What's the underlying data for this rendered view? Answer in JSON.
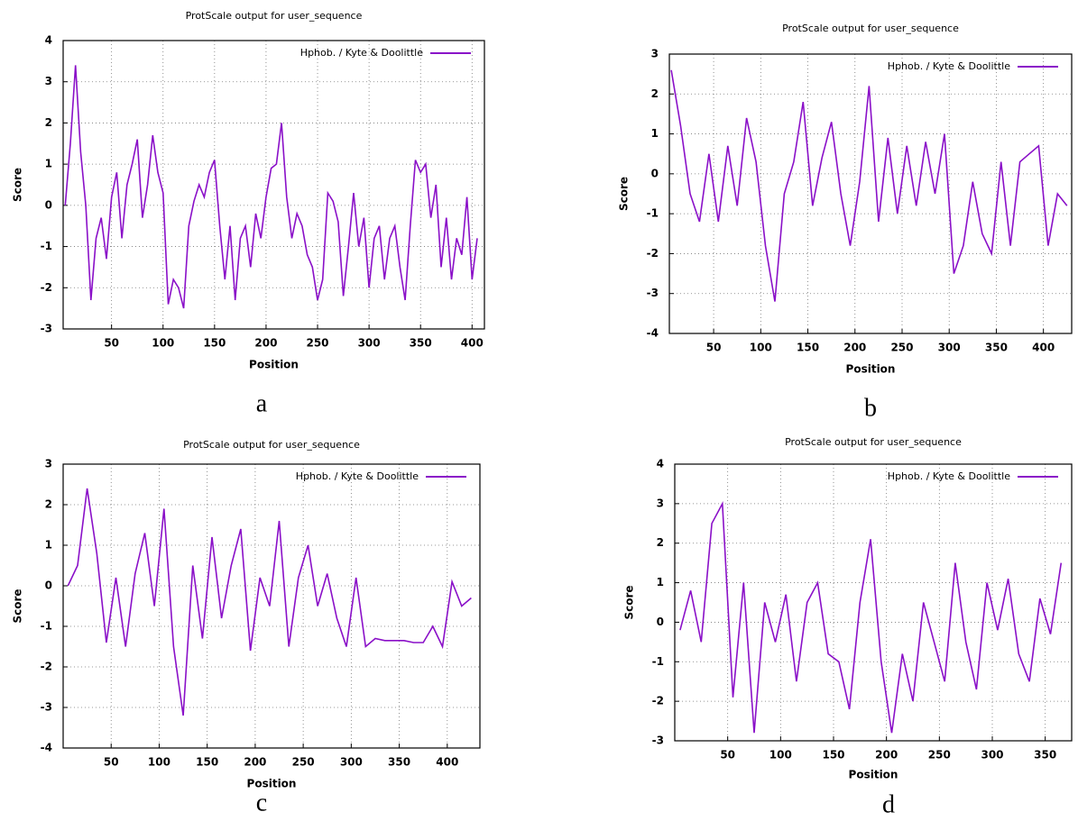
{
  "chart_data": [
    {
      "type": "line",
      "title": "ProtScale output for user_sequence",
      "panel_label": "a",
      "xlabel": "Position",
      "ylabel": "Score",
      "x": [
        5,
        10,
        15,
        20,
        25,
        30,
        35,
        40,
        45,
        50,
        55,
        60,
        65,
        70,
        75,
        80,
        85,
        90,
        95,
        100,
        105,
        110,
        115,
        120,
        125,
        130,
        135,
        140,
        145,
        150,
        155,
        160,
        165,
        170,
        175,
        180,
        185,
        190,
        195,
        200,
        205,
        210,
        215,
        220,
        225,
        230,
        235,
        240,
        245,
        250,
        255,
        260,
        265,
        270,
        275,
        280,
        285,
        290,
        295,
        300,
        305,
        310,
        315,
        320,
        325,
        330,
        335,
        340,
        345,
        350,
        355,
        360,
        365,
        370,
        375,
        380,
        385,
        390,
        395,
        400,
        405
      ],
      "series": [
        {
          "name": "Hphob. / Kyte & Doolittle",
          "color": "#8a10c8",
          "values": [
            0,
            1.5,
            3.4,
            1.3,
            0,
            -2.3,
            -0.8,
            -0.3,
            -1.3,
            0.2,
            0.8,
            -0.8,
            0.5,
            1.0,
            1.6,
            -0.3,
            0.5,
            1.7,
            0.8,
            0.3,
            -2.4,
            -1.8,
            -2.0,
            -2.5,
            -0.5,
            0.1,
            0.5,
            0.2,
            0.8,
            1.1,
            -0.5,
            -1.8,
            -0.5,
            -2.3,
            -0.8,
            -0.5,
            -1.5,
            -0.2,
            -0.8,
            0.2,
            0.9,
            1.0,
            2.0,
            0.2,
            -0.8,
            -0.2,
            -0.5,
            -1.2,
            -1.5,
            -2.3,
            -1.8,
            0.3,
            0.1,
            -0.4,
            -2.2,
            -1.0,
            0.3,
            -1.0,
            -0.3,
            -2.0,
            -0.8,
            -0.5,
            -1.8,
            -0.8,
            -0.5,
            -1.5,
            -2.3,
            -0.5,
            1.1,
            0.8,
            1.0,
            -0.3,
            0.5,
            -1.5,
            -0.3,
            -1.8,
            -0.8,
            -1.2,
            0.2,
            -1.8,
            -0.8
          ]
        }
      ],
      "xlim": [
        3,
        412
      ],
      "ylim": [
        -3,
        4
      ],
      "xticks": [
        50,
        100,
        150,
        200,
        250,
        300,
        350,
        400
      ],
      "yticks": [
        -3,
        -2,
        -1,
        0,
        1,
        2,
        3,
        4
      ],
      "grid": true,
      "legend": "top right"
    },
    {
      "type": "line",
      "title": "ProtScale output for user_sequence",
      "panel_label": "b",
      "xlabel": "Position",
      "ylabel": "Score",
      "x": [
        5,
        15,
        25,
        35,
        45,
        55,
        65,
        75,
        85,
        95,
        105,
        115,
        125,
        135,
        145,
        155,
        165,
        175,
        185,
        195,
        205,
        215,
        225,
        235,
        245,
        255,
        265,
        275,
        285,
        295,
        305,
        315,
        325,
        335,
        345,
        355,
        365,
        375,
        385,
        395,
        405,
        415,
        425
      ],
      "series": [
        {
          "name": "Hphob. / Kyte & Doolittle",
          "color": "#8a10c8",
          "values": [
            2.6,
            1.2,
            -0.5,
            -1.2,
            0.5,
            -1.2,
            0.7,
            -0.8,
            1.4,
            0.3,
            -1.8,
            -3.2,
            -0.5,
            0.3,
            1.8,
            -0.8,
            0.4,
            1.3,
            -0.5,
            -1.8,
            -0.2,
            2.2,
            -1.2,
            0.9,
            -1.0,
            0.7,
            -0.8,
            0.8,
            -0.5,
            1.0,
            -2.5,
            -1.8,
            -0.2,
            -1.5,
            -2.0,
            0.3,
            -1.8,
            0.3,
            0.5,
            0.7,
            -1.8,
            -0.5,
            -0.8
          ]
        }
      ],
      "xlim": [
        3,
        430
      ],
      "ylim": [
        -4,
        3
      ],
      "xticks": [
        50,
        100,
        150,
        200,
        250,
        300,
        350,
        400
      ],
      "yticks": [
        -4,
        -3,
        -2,
        -1,
        0,
        1,
        2,
        3
      ],
      "grid": true,
      "legend": "top right"
    },
    {
      "type": "line",
      "title": "ProtScale output for user_sequence",
      "panel_label": "c",
      "xlabel": "Position",
      "ylabel": "Score",
      "x": [
        5,
        15,
        25,
        35,
        45,
        55,
        65,
        75,
        85,
        95,
        105,
        115,
        125,
        135,
        145,
        155,
        165,
        175,
        185,
        195,
        205,
        215,
        225,
        235,
        245,
        255,
        265,
        275,
        285,
        295,
        305,
        315,
        325,
        335,
        345,
        355,
        365,
        375,
        385,
        395,
        405,
        415,
        425
      ],
      "series": [
        {
          "name": "Hphob. / Kyte & Doolittle",
          "color": "#8a10c8",
          "values": [
            0,
            0.5,
            2.4,
            0.8,
            -1.4,
            0.2,
            -1.5,
            0.3,
            1.3,
            -0.5,
            1.9,
            -1.5,
            -3.2,
            0.5,
            -1.3,
            1.2,
            -0.8,
            0.5,
            1.4,
            -1.6,
            0.2,
            -0.5,
            1.6,
            -1.5,
            0.2,
            1.0,
            -0.5,
            0.3,
            -0.8,
            -1.5,
            0.2,
            -1.5,
            -1.3,
            -1.35,
            -1.35,
            -1.35,
            -1.4,
            -1.4,
            -1.0,
            -1.5,
            0.1,
            -0.5,
            -0.3
          ]
        }
      ],
      "xlim": [
        0,
        434
      ],
      "ylim": [
        -4,
        3
      ],
      "xticks": [
        50,
        100,
        150,
        200,
        250,
        300,
        350,
        400
      ],
      "yticks": [
        -4,
        -3,
        -2,
        -1,
        0,
        1,
        2,
        3
      ],
      "grid": true,
      "legend": "top right"
    },
    {
      "type": "line",
      "title": "ProtScale output for user_sequence",
      "panel_label": "d",
      "xlabel": "Position",
      "ylabel": "Score",
      "x": [
        5,
        15,
        25,
        35,
        45,
        55,
        65,
        75,
        85,
        95,
        105,
        115,
        125,
        135,
        145,
        155,
        165,
        175,
        185,
        195,
        205,
        215,
        225,
        235,
        245,
        255,
        265,
        275,
        285,
        295,
        305,
        315,
        325,
        335,
        345,
        355,
        365
      ],
      "series": [
        {
          "name": "Hphob. / Kyte & Doolittle",
          "color": "#8a10c8",
          "values": [
            -0.2,
            0.8,
            -0.5,
            2.5,
            3.0,
            -1.9,
            1.0,
            -2.8,
            0.5,
            -0.5,
            0.7,
            -1.5,
            0.5,
            1.0,
            -0.8,
            -1.0,
            -2.2,
            0.5,
            2.1,
            -1.0,
            -2.8,
            -0.8,
            -2.0,
            0.5,
            -0.5,
            -1.5,
            1.5,
            -0.5,
            -1.7,
            1.0,
            -0.2,
            1.1,
            -0.8,
            -1.5,
            0.6,
            -0.3,
            1.5
          ]
        }
      ],
      "xlim": [
        0,
        375
      ],
      "ylim": [
        -3,
        4
      ],
      "xticks": [
        50,
        100,
        150,
        200,
        250,
        300,
        350
      ],
      "yticks": [
        -3,
        -2,
        -1,
        0,
        1,
        2,
        3,
        4
      ],
      "grid": true,
      "legend": "top right"
    }
  ]
}
